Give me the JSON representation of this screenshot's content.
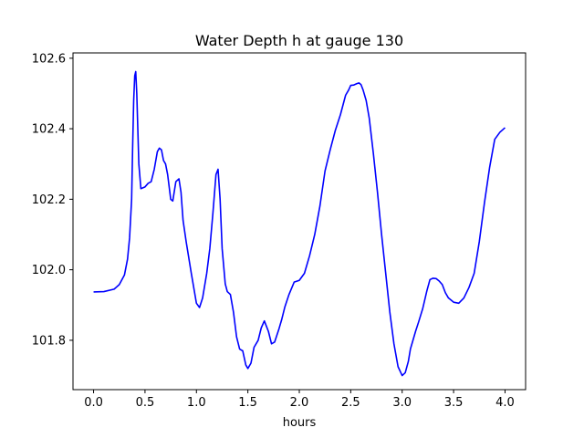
{
  "chart_data": {
    "type": "line",
    "title": "Water Depth h at gauge 130",
    "xlabel": "hours",
    "ylabel": "",
    "xlim": [
      -0.2,
      4.2
    ],
    "ylim": [
      101.66,
      102.615
    ],
    "xticks": [
      0.0,
      0.5,
      1.0,
      1.5,
      2.0,
      2.5,
      3.0,
      3.5,
      4.0
    ],
    "xtick_labels": [
      "0.0",
      "0.5",
      "1.0",
      "1.5",
      "2.0",
      "2.5",
      "3.0",
      "3.5",
      "4.0"
    ],
    "yticks": [
      101.8,
      102.0,
      102.2,
      102.4,
      102.6
    ],
    "ytick_labels": [
      "101.8",
      "102.0",
      "102.2",
      "102.4",
      "102.6"
    ],
    "grid": false,
    "series": [
      {
        "color": "#0000ff",
        "x": [
          0.0,
          0.1,
          0.2,
          0.25,
          0.3,
          0.33,
          0.35,
          0.37,
          0.38,
          0.39,
          0.4,
          0.41,
          0.42,
          0.44,
          0.46,
          0.5,
          0.53,
          0.56,
          0.59,
          0.62,
          0.64,
          0.66,
          0.68,
          0.7,
          0.72,
          0.75,
          0.77,
          0.8,
          0.83,
          0.85,
          0.87,
          0.9,
          0.95,
          1.0,
          1.03,
          1.06,
          1.1,
          1.13,
          1.16,
          1.19,
          1.21,
          1.23,
          1.25,
          1.28,
          1.3,
          1.33,
          1.36,
          1.39,
          1.42,
          1.45,
          1.48,
          1.5,
          1.53,
          1.56,
          1.6,
          1.63,
          1.66,
          1.68,
          1.7,
          1.73,
          1.76,
          1.8,
          1.83,
          1.86,
          1.9,
          1.95,
          2.0,
          2.05,
          2.1,
          2.15,
          2.2,
          2.25,
          2.3,
          2.35,
          2.4,
          2.45,
          2.48,
          2.5,
          2.53,
          2.56,
          2.58,
          2.6,
          2.62,
          2.65,
          2.68,
          2.72,
          2.76,
          2.8,
          2.84,
          2.88,
          2.92,
          2.96,
          3.0,
          3.03,
          3.06,
          3.08,
          3.1,
          3.13,
          3.16,
          3.2,
          3.24,
          3.27,
          3.3,
          3.33,
          3.36,
          3.39,
          3.42,
          3.45,
          3.5,
          3.55,
          3.6,
          3.65,
          3.7,
          3.75,
          3.8,
          3.85,
          3.9,
          3.95,
          4.0
        ],
        "y": [
          101.937,
          101.938,
          101.945,
          101.958,
          101.985,
          102.03,
          102.09,
          102.2,
          102.35,
          102.48,
          102.55,
          102.562,
          102.5,
          102.3,
          102.23,
          102.235,
          102.245,
          102.25,
          102.285,
          102.335,
          102.345,
          102.34,
          102.31,
          102.3,
          102.27,
          102.2,
          102.195,
          102.25,
          102.258,
          102.22,
          102.14,
          102.08,
          101.99,
          101.905,
          101.893,
          101.92,
          101.99,
          102.06,
          102.16,
          102.27,
          102.285,
          102.2,
          102.06,
          101.96,
          101.938,
          101.93,
          101.88,
          101.81,
          101.775,
          101.77,
          101.73,
          101.72,
          101.735,
          101.78,
          101.8,
          101.835,
          101.855,
          101.84,
          101.825,
          101.79,
          101.795,
          101.83,
          101.86,
          101.895,
          101.93,
          101.965,
          101.97,
          101.99,
          102.04,
          102.1,
          102.18,
          102.28,
          102.34,
          102.395,
          102.44,
          102.495,
          102.51,
          102.523,
          102.524,
          102.528,
          102.53,
          102.525,
          102.51,
          102.48,
          102.43,
          102.33,
          102.22,
          102.1,
          101.99,
          101.88,
          101.79,
          101.725,
          101.7,
          101.708,
          101.74,
          101.775,
          101.795,
          101.825,
          101.852,
          101.89,
          101.94,
          101.972,
          101.976,
          101.975,
          101.968,
          101.958,
          101.935,
          101.92,
          101.908,
          101.905,
          101.92,
          101.95,
          101.99,
          102.08,
          102.19,
          102.29,
          102.37,
          102.39,
          102.403
        ]
      }
    ]
  }
}
